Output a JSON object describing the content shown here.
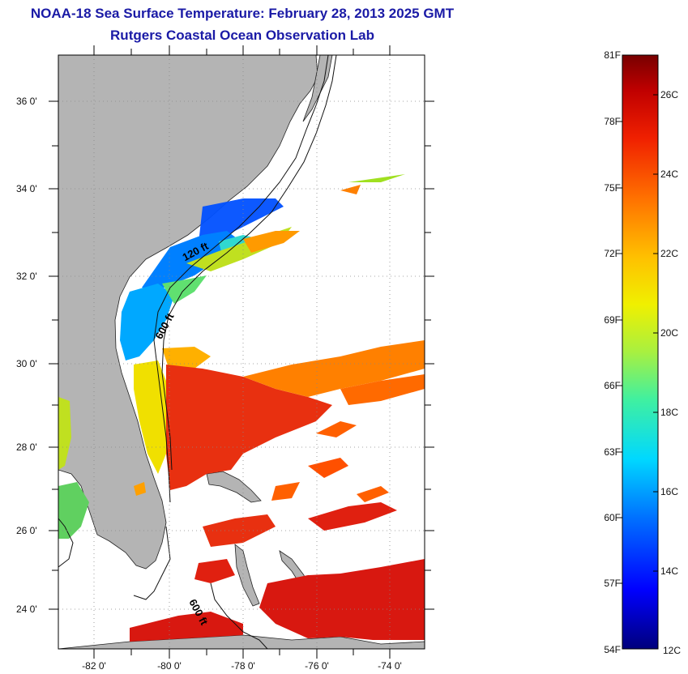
{
  "title": "NOAA-18 Sea Surface Temperature:  February 28, 2013 2025 GMT",
  "subtitle": "Rutgers Coastal Ocean Observation Lab",
  "latitude_labels": [
    "36 0'",
    "34 0'",
    "32 0'",
    "30 0'",
    "28 0'",
    "26 0'",
    "24 0'"
  ],
  "longitude_labels": [
    "-82 0'",
    "-80 0'",
    "-78 0'",
    "-76 0'",
    "-74 0'"
  ],
  "colorbar": {
    "fahrenheit_labels": [
      "81F",
      "78F",
      "75F",
      "72F",
      "69F",
      "66F",
      "63F",
      "60F",
      "57F",
      "54F"
    ],
    "celsius_labels": [
      "26C",
      "24C",
      "22C",
      "20C",
      "18C",
      "16C",
      "14C",
      "12C"
    ],
    "colors": [
      "#0000a0",
      "#0000ff",
      "#0060ff",
      "#00c0ff",
      "#30f0c0",
      "#90f050",
      "#e8f000",
      "#ffc000",
      "#ff7a00",
      "#f02000",
      "#b00000",
      "#700000"
    ]
  },
  "contour_labels": [
    "120 ft",
    "600 ft",
    "600 ft"
  ],
  "colors": {
    "land": "#b4b4b4",
    "title": "#1a1aa6"
  }
}
